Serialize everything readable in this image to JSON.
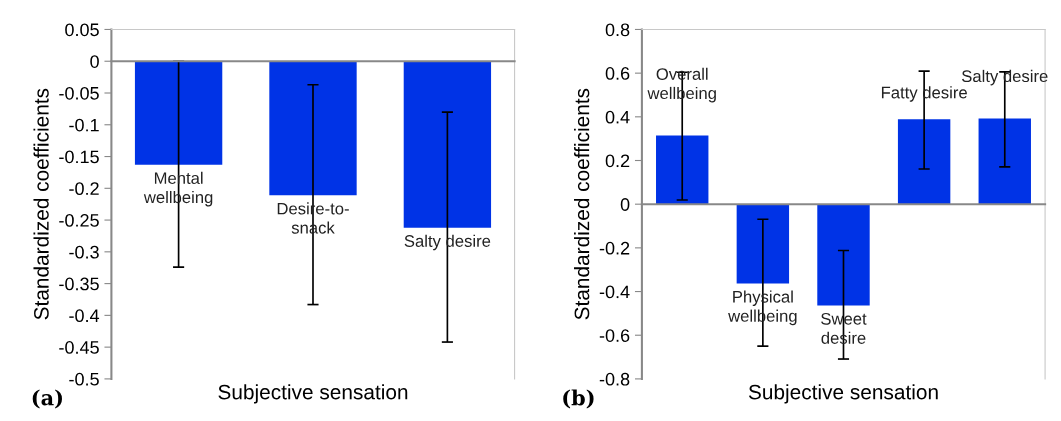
{
  "chart_data": [
    {
      "type": "bar",
      "xlabel": "Subjective sensation",
      "ylabel": "Standardized coefficients",
      "categories": [
        "Mental\nwellbeing",
        "Desire-to-\nsnack",
        "Salty desire"
      ],
      "values": [
        -0.163,
        -0.211,
        -0.262
      ],
      "color": "#0033e6",
      "errors": [
        [
          -0.324,
          0.0
        ],
        [
          -0.383,
          -0.037
        ],
        [
          -0.442,
          -0.08
        ]
      ],
      "ylim": [
        -0.5,
        0.05
      ],
      "yticks": [
        -0.5,
        -0.45,
        -0.4,
        -0.35,
        -0.3,
        -0.25,
        -0.2,
        -0.15,
        -0.1,
        -0.05,
        0,
        0.05
      ],
      "annotations": [
        "(a)"
      ]
    },
    {
      "type": "bar",
      "xlabel": "Subjective sensation",
      "ylabel": "Standardized coefficients",
      "categories": [
        "Overall\nwellbeing",
        "Physical\nwellbeing",
        "Sweet\ndesire",
        "Fatty desire",
        "Salty desire"
      ],
      "values": [
        0.314,
        -0.363,
        -0.464,
        0.389,
        0.392
      ],
      "color": "#0033e6",
      "errors": [
        [
          0.019,
          0.604
        ],
        [
          -0.65,
          -0.069
        ],
        [
          -0.709,
          -0.212
        ],
        [
          0.161,
          0.609
        ],
        [
          0.171,
          0.606
        ]
      ],
      "ylim": [
        -0.8,
        0.8
      ],
      "yticks": [
        -0.8,
        -0.6,
        -0.4,
        -0.2,
        0,
        0.2,
        0.4,
        0.6,
        0.8
      ],
      "annotations": [
        "(b)"
      ]
    }
  ]
}
